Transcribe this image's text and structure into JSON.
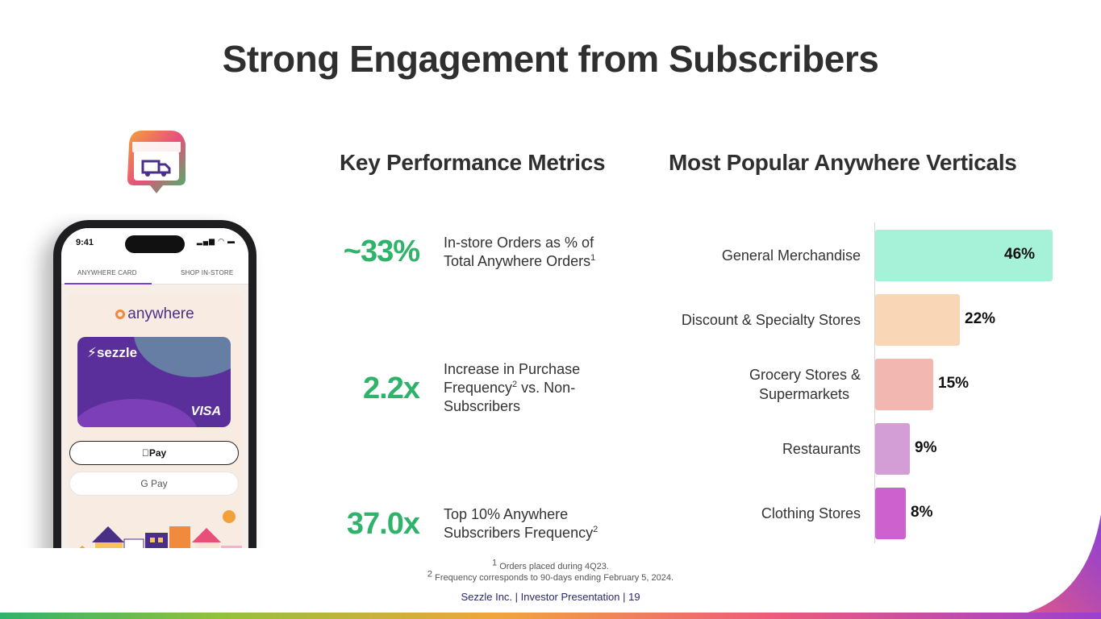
{
  "page_title": "Strong Engagement from Subscribers",
  "left_section_title": "Key Performance Metrics",
  "right_section_title": "Most Popular Anywhere Verticals",
  "phone": {
    "time": "9:41",
    "tab_left": "ANYWHERE CARD",
    "tab_right": "SHOP IN-STORE",
    "app_logo": "anywhere",
    "card_brand": "sezzle",
    "card_network": "VISA",
    "apple_pay": "Pay",
    "google_pay": "G Pay"
  },
  "metrics": [
    {
      "value": "~33%",
      "desc": "In-store Orders as % of Total Anywhere Orders",
      "sup": "1"
    },
    {
      "value": "2.2x",
      "desc_a": "Increase in Purchase Frequency",
      "sup": "2",
      "desc_b": " vs. Non-Subscribers"
    },
    {
      "value": "37.0x",
      "desc": "Top 10% Anywhere Subscribers Frequency",
      "sup": "2"
    }
  ],
  "chart_data": {
    "type": "bar",
    "orientation": "horizontal",
    "title": "Most Popular Anywhere Verticals",
    "categories": [
      "General Merchandise",
      "Discount & Specialty Stores",
      "Grocery Stores & Supermarkets",
      "Restaurants",
      "Clothing Stores"
    ],
    "category_lines": [
      [
        "General Merchandise"
      ],
      [
        "Discount & Specialty Stores"
      ],
      [
        "Grocery Stores &",
        "Supermarkets"
      ],
      [
        "Restaurants"
      ],
      [
        "Clothing Stores"
      ]
    ],
    "values": [
      46,
      22,
      15,
      9,
      8
    ],
    "value_labels": [
      "46%",
      "22%",
      "15%",
      "9%",
      "8%"
    ],
    "colors": [
      "#a6f2d8",
      "#f8d6b6",
      "#f3b7b1",
      "#d29ed5",
      "#cd62cf"
    ],
    "unit": "%",
    "xlim": [
      0,
      46
    ]
  },
  "footnotes": {
    "note1_sup": "1",
    "note1": " Orders placed during 4Q23.",
    "note2_sup": "2",
    "note2": " Frequency corresponds to 90-days ending February 5, 2024."
  },
  "footer": "Sezzle Inc. | Investor Presentation | 19"
}
